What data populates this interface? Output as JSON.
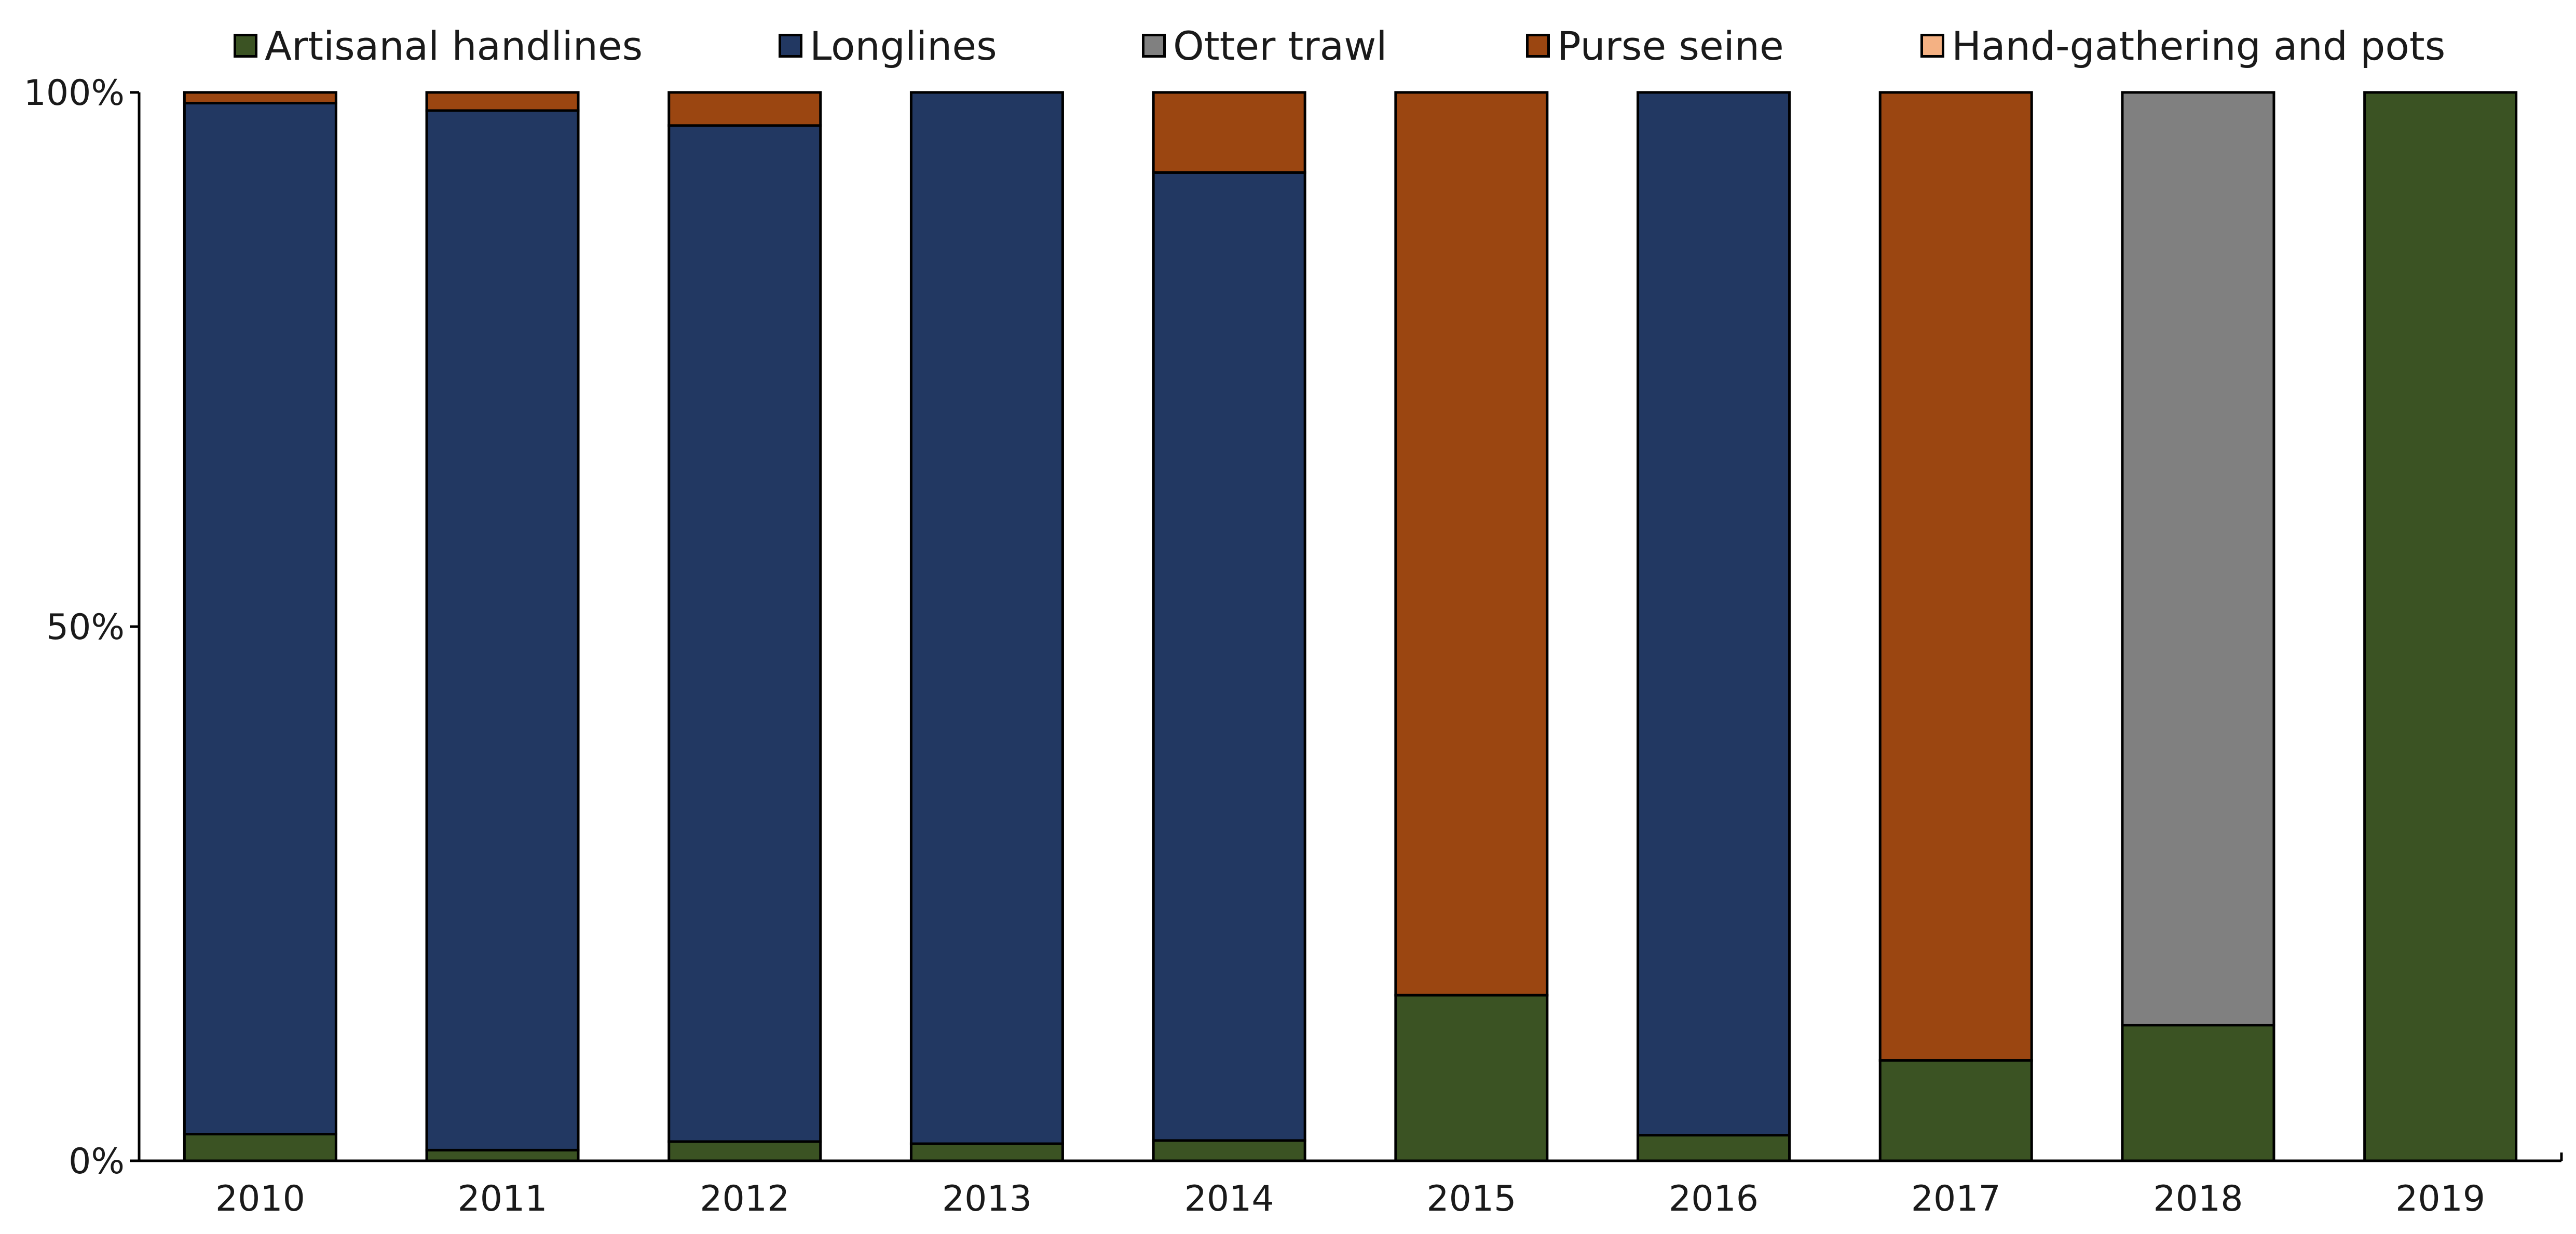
{
  "chart_data": {
    "type": "bar",
    "stacked": true,
    "percent_stacked": true,
    "categories": [
      "2010",
      "2011",
      "2012",
      "2013",
      "2014",
      "2015",
      "2016",
      "2017",
      "2018",
      "2019"
    ],
    "series": [
      {
        "name": "Artisanal handlines",
        "color": "#3b5323",
        "values": [
          2.5,
          1.0,
          1.8,
          1.6,
          1.9,
          15.5,
          2.4,
          9.4,
          12.7,
          100
        ]
      },
      {
        "name": "Longlines",
        "color": "#223862",
        "values": [
          96.5,
          97.3,
          95.1,
          98.4,
          90.6,
          0,
          97.6,
          0,
          0,
          0
        ]
      },
      {
        "name": "Otter trawl",
        "color": "#808080",
        "values": [
          0,
          0,
          0,
          0,
          0,
          0,
          0,
          0,
          87.3,
          0
        ]
      },
      {
        "name": "Purse seine",
        "color": "#9b4611",
        "values": [
          1.0,
          1.7,
          3.1,
          0,
          7.5,
          84.5,
          0,
          90.6,
          0,
          0
        ]
      },
      {
        "name": "Hand-gathering and pots",
        "color": "#f4b183",
        "values": [
          0,
          0,
          0,
          0,
          0,
          0,
          0,
          0,
          0,
          0
        ]
      }
    ],
    "y_ticks": [
      "0%",
      "50%",
      "100%"
    ],
    "ylim": [
      0,
      100
    ],
    "grid": false,
    "legend_position": "top"
  }
}
